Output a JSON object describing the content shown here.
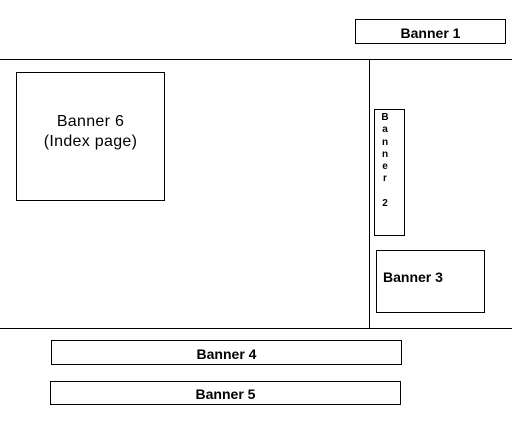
{
  "banners": {
    "banner1": "Banner 1",
    "banner2_chars": [
      "B",
      "a",
      "n",
      "n",
      "e",
      "r",
      "",
      "2"
    ],
    "banner3": "Banner 3",
    "banner4": "Banner 4",
    "banner5": "Banner 5",
    "banner6_line1": "Banner 6",
    "banner6_line2": "(Index page)"
  }
}
